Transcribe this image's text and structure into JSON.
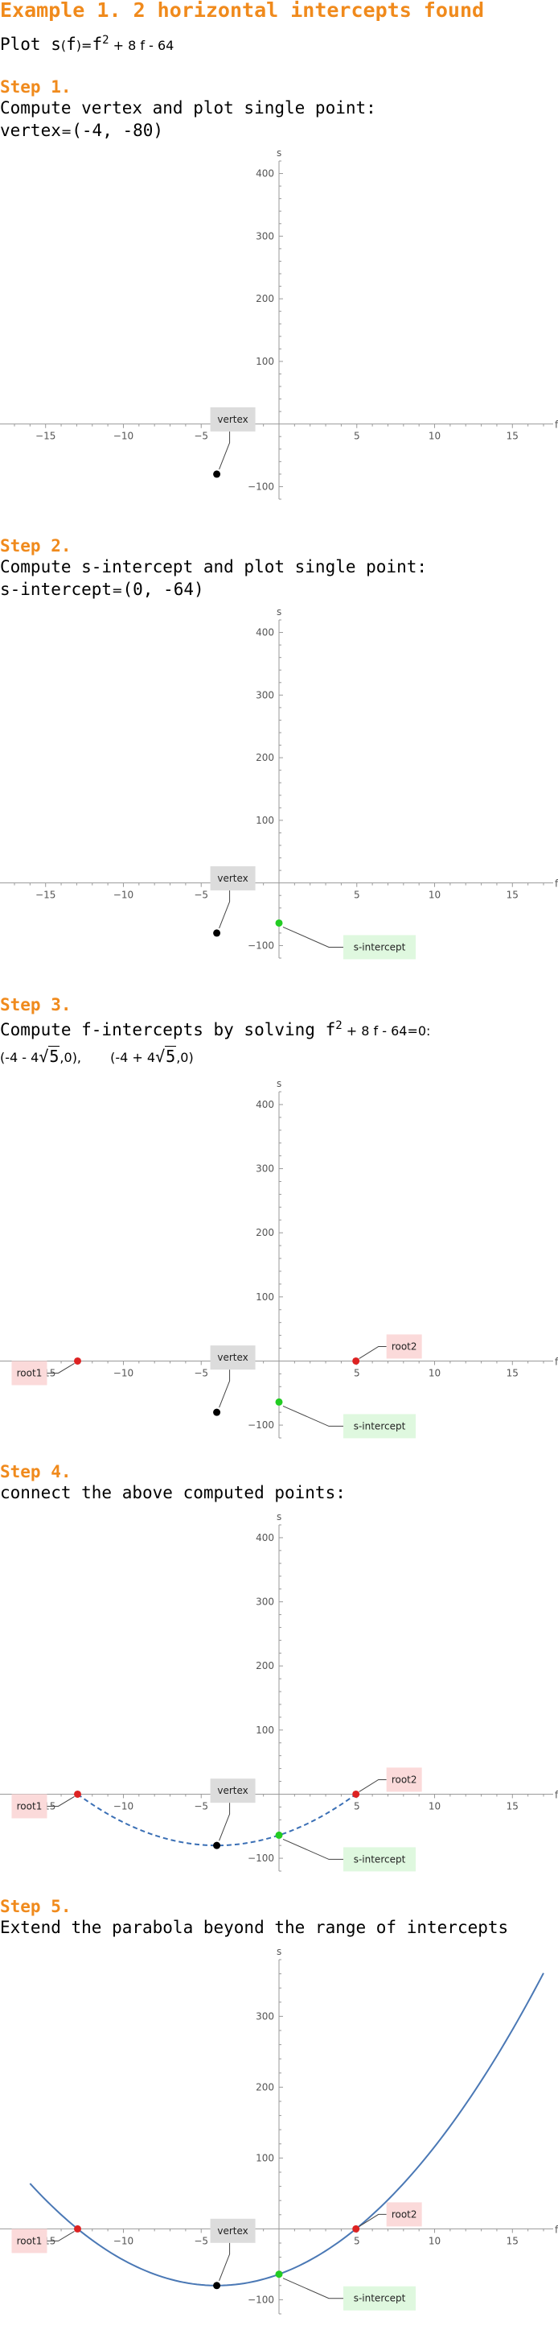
{
  "header": {
    "title": "Example 1. 2 horizontal intercepts found",
    "plot_prefix": "Plot ",
    "function_name": "s",
    "arg": "f",
    "rhs_a": "f",
    "rhs_exp": "2",
    "rhs_b": " + 8 f - 64"
  },
  "steps": [
    {
      "label": "Step 1.",
      "text": "Compute vertex and plot single point:",
      "result_name": "vertex",
      "result_value": "(-4, -80)"
    },
    {
      "label": "Step 2.",
      "text": "Compute s-intercept and plot single point:",
      "result_name": "s-intercept",
      "result_value": "(0, -64)"
    },
    {
      "label": "Step 3.",
      "text_prefix": "Compute f-intercepts by solving f",
      "text_exp": "2",
      "text_suffix": " + 8 f - 64=0:",
      "root1_a": "(-4 - 4",
      "root1_rad": "5",
      "root1_b": ",0),",
      "root2_a": "(-4 + 4",
      "root2_rad": "5",
      "root2_b": ",0)"
    },
    {
      "label": "Step 4.",
      "text": "connect the above computed points:"
    },
    {
      "label": "Step 5.",
      "text": "Extend the parabola beyond the range of intercepts"
    }
  ],
  "chart_data": {
    "type": "scatter",
    "function": "s(f) = f^2 + 8 f - 64",
    "xlabel": "f",
    "ylabel": "s",
    "x_ticks": [
      -15,
      -10,
      -5,
      5,
      10,
      15
    ],
    "y_ticks": [
      400,
      300,
      200,
      100,
      -100
    ],
    "points": {
      "vertex": {
        "x": -4,
        "y": -80,
        "label": "vertex",
        "color": "#000000"
      },
      "s_intercept": {
        "x": 0,
        "y": -64,
        "label": "s-intercept",
        "color": "#22cc22"
      },
      "root1": {
        "x": -12.944,
        "y": 0,
        "label": "root1",
        "color": "#dd2222"
      },
      "root2": {
        "x": 4.944,
        "y": 0,
        "label": "root2",
        "color": "#dd2222"
      }
    },
    "panels": [
      {
        "step": 1,
        "show": [
          "vertex"
        ],
        "curve": "none",
        "xlim": [
          -17,
          17
        ],
        "ylim": [
          -120,
          420
        ]
      },
      {
        "step": 2,
        "show": [
          "vertex",
          "s_intercept"
        ],
        "curve": "none",
        "xlim": [
          -17,
          17
        ],
        "ylim": [
          -120,
          420
        ]
      },
      {
        "step": 3,
        "show": [
          "vertex",
          "s_intercept",
          "root1",
          "root2"
        ],
        "curve": "none",
        "xlim": [
          -17,
          17
        ],
        "ylim": [
          -120,
          420
        ]
      },
      {
        "step": 4,
        "show": [
          "vertex",
          "s_intercept",
          "root1",
          "root2"
        ],
        "curve": "dashed",
        "curve_range": [
          -12.944,
          4.944
        ],
        "xlim": [
          -17,
          17
        ],
        "ylim": [
          -120,
          420
        ]
      },
      {
        "step": 5,
        "show": [
          "vertex",
          "s_intercept",
          "root1",
          "root2"
        ],
        "curve": "solid",
        "curve_range": [
          -16,
          17
        ],
        "xlim": [
          -17,
          17
        ],
        "ylim": [
          -120,
          380
        ]
      }
    ],
    "colors": {
      "dashed_curve": "#3a6fb5",
      "solid_curve": "#4a78b5",
      "vertex_box": "#dcdcdc",
      "s_box": "#dff8df",
      "root_box": "#fbdada"
    }
  }
}
